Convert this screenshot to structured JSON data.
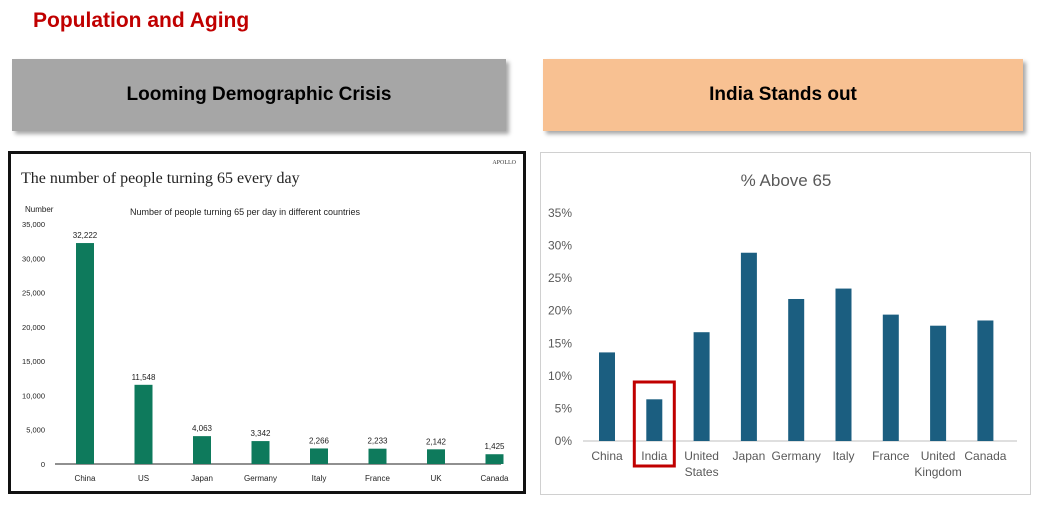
{
  "slide": {
    "title": "Population and Aging",
    "left_banner": "Looming Demographic Crisis",
    "right_banner": "India Stands out"
  },
  "colors": {
    "title_red": "#c00000",
    "left_bar": "#0e7a5c",
    "right_bar": "#1b5e80",
    "highlight": "#c00000"
  },
  "chart_data": [
    {
      "type": "bar",
      "title": "The number of people turning 65 every day",
      "subtitle": "Number of people turning 65 per day in different countries",
      "brand": "APOLLO",
      "ylabel": "Number",
      "xlabel": "",
      "categories": [
        "China",
        "US",
        "Japan",
        "Germany",
        "Italy",
        "France",
        "UK",
        "Canada"
      ],
      "values": [
        32222,
        11548,
        4063,
        3342,
        2266,
        2233,
        2142,
        1425
      ],
      "value_labels": [
        "32,222",
        "11,548",
        "4,063",
        "3,342",
        "2,266",
        "2,233",
        "2,142",
        "1,425"
      ],
      "ylim": [
        0,
        35000
      ],
      "yticks": [
        "0",
        "5,000",
        "10,000",
        "15,000",
        "20,000",
        "25,000",
        "30,000",
        "35,000"
      ],
      "grid": false
    },
    {
      "type": "bar",
      "title": "% Above 65",
      "xlabel": "",
      "ylabel": "",
      "categories": [
        "China",
        "India",
        "United States",
        "Japan",
        "Germany",
        "Italy",
        "France",
        "United Kingdom",
        "Canada"
      ],
      "category_lines": [
        [
          "China"
        ],
        [
          "India"
        ],
        [
          "United",
          "States"
        ],
        [
          "Japan"
        ],
        [
          "Germany"
        ],
        [
          "Italy"
        ],
        [
          "France"
        ],
        [
          "United",
          "Kingdom"
        ],
        [
          "Canada"
        ]
      ],
      "values": [
        13.6,
        6.4,
        16.7,
        28.9,
        21.8,
        23.4,
        19.4,
        17.7,
        18.5
      ],
      "ylim": [
        0,
        35
      ],
      "yticks": [
        "0%",
        "5%",
        "10%",
        "15%",
        "20%",
        "25%",
        "30%",
        "35%"
      ],
      "highlight": "India",
      "grid": false
    }
  ]
}
